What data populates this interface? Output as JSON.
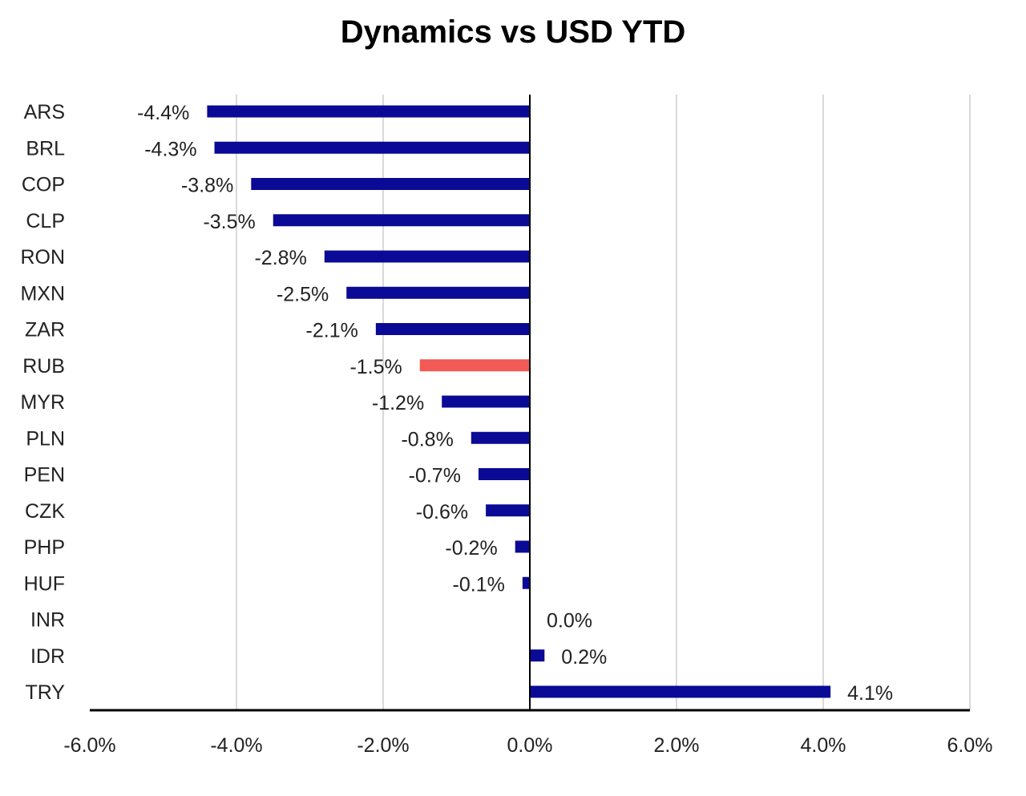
{
  "chart_data": {
    "type": "bar",
    "orientation": "horizontal",
    "title": "Dynamics vs USD YTD",
    "categories": [
      "ARS",
      "BRL",
      "COP",
      "CLP",
      "RON",
      "MXN",
      "ZAR",
      "RUB",
      "MYR",
      "PLN",
      "PEN",
      "CZK",
      "PHP",
      "HUF",
      "INR",
      "IDR",
      "TRY"
    ],
    "values": [
      -4.4,
      -4.3,
      -3.8,
      -3.5,
      -2.8,
      -2.5,
      -2.1,
      -1.5,
      -1.2,
      -0.8,
      -0.7,
      -0.6,
      -0.2,
      -0.1,
      0.0,
      0.2,
      4.1
    ],
    "value_labels": [
      "-4.4%",
      "-4.3%",
      "-3.8%",
      "-3.5%",
      "-2.8%",
      "-2.5%",
      "-2.1%",
      "-1.5%",
      "-1.2%",
      "-0.8%",
      "-0.7%",
      "-0.6%",
      "-0.2%",
      "-0.1%",
      "0.0%",
      "0.2%",
      "4.1%"
    ],
    "highlight": "RUB",
    "xlim": [
      -6.0,
      6.0
    ],
    "x_ticks": [
      -6,
      -4,
      -2,
      0,
      2,
      4,
      6
    ],
    "x_tick_labels": [
      "-6.0%",
      "-4.0%",
      "-2.0%",
      "0.0%",
      "2.0%",
      "4.0%",
      "6.0%"
    ],
    "xlabel": "",
    "ylabel": "",
    "grid": "vertical",
    "legend": "none",
    "colors": {
      "bar": "#0a0a96",
      "highlight": "#f25a55",
      "grid": "#d9d9d9",
      "axis": "#000000"
    }
  }
}
